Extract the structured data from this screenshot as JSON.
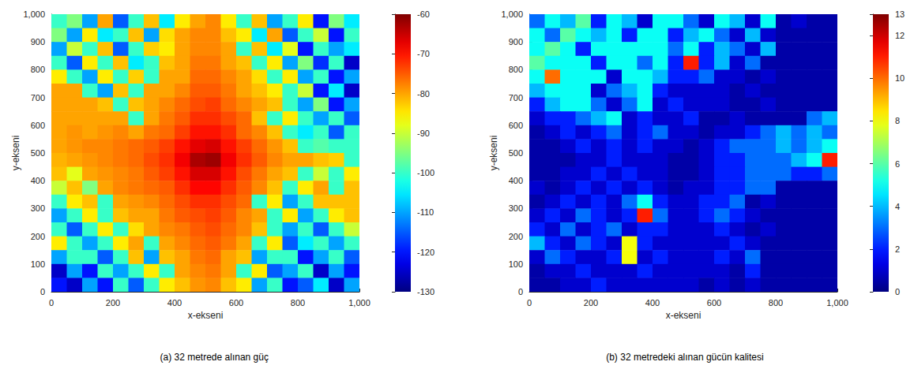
{
  "chart_data": [
    {
      "type": "heatmap",
      "title": "(a) 32 metrede alınan güç",
      "x_label": "x-ekseni",
      "y_label": "y-ekseni",
      "xlim": [
        0,
        1000
      ],
      "xticks": [
        0,
        200,
        400,
        600,
        800,
        1000
      ],
      "ylim": [
        0,
        1000
      ],
      "yticks": [
        0,
        100,
        200,
        300,
        400,
        500,
        600,
        700,
        800,
        900,
        1000
      ],
      "x": [
        25,
        75,
        125,
        175,
        225,
        275,
        325,
        375,
        425,
        475,
        525,
        575,
        625,
        675,
        725,
        775,
        825,
        875,
        925,
        975
      ],
      "y": [
        975,
        925,
        875,
        825,
        775,
        725,
        675,
        625,
        575,
        525,
        475,
        425,
        375,
        325,
        275,
        225,
        175,
        125,
        75,
        25
      ],
      "values": [
        [
          -100,
          -95,
          -110,
          -80,
          -115,
          -100,
          -82,
          -105,
          -85,
          -80,
          -78,
          -85,
          -100,
          -82,
          -110,
          -100,
          -85,
          -120,
          -95,
          -105
        ],
        [
          -95,
          -110,
          -85,
          -105,
          -100,
          -82,
          -110,
          -84,
          -80,
          -78,
          -78,
          -82,
          -85,
          -105,
          -80,
          -115,
          -100,
          -90,
          -120,
          -100
        ],
        [
          -110,
          -90,
          -100,
          -82,
          -115,
          -100,
          -83,
          -85,
          -80,
          -78,
          -78,
          -80,
          -100,
          -82,
          -105,
          -88,
          -120,
          -100,
          -110,
          -105
        ],
        [
          -100,
          -115,
          -85,
          -100,
          -82,
          -105,
          -100,
          -82,
          -80,
          -77,
          -77,
          -80,
          -82,
          -100,
          -85,
          -110,
          -95,
          -118,
          -100,
          -125
        ],
        [
          -85,
          -100,
          -110,
          -85,
          -100,
          -83,
          -100,
          -80,
          -80,
          -76,
          -76,
          -78,
          -80,
          -84,
          -100,
          -85,
          -110,
          -100,
          -120,
          -110
        ],
        [
          -80,
          -80,
          -100,
          -110,
          -82,
          -100,
          -80,
          -80,
          -78,
          -75,
          -75,
          -77,
          -80,
          -82,
          -85,
          -100,
          -90,
          -120,
          -105,
          -125
        ],
        [
          -80,
          -80,
          -80,
          -82,
          -100,
          -82,
          -80,
          -78,
          -76,
          -74,
          -73,
          -76,
          -78,
          -80,
          -82,
          -100,
          -110,
          -95,
          -120,
          -110
        ],
        [
          -80,
          -80,
          -80,
          -80,
          -80,
          -100,
          -80,
          -77,
          -75,
          -72,
          -72,
          -74,
          -76,
          -82,
          -100,
          -85,
          -100,
          -110,
          -100,
          -115
        ],
        [
          -80,
          -79,
          -80,
          -79,
          -78,
          -80,
          -77,
          -76,
          -73,
          -70,
          -70,
          -72,
          -76,
          -78,
          -82,
          -100,
          -105,
          -100,
          -115,
          -100
        ],
        [
          -80,
          -79,
          -78,
          -78,
          -77,
          -76,
          -75,
          -73,
          -70,
          -67,
          -66,
          -70,
          -73,
          -76,
          -79,
          -82,
          -100,
          -98,
          -100,
          -100
        ],
        [
          -81,
          -80,
          -79,
          -78,
          -77,
          -76,
          -74,
          -72,
          -68,
          -63,
          -62,
          -68,
          -72,
          -75,
          -78,
          -80,
          -80,
          -82,
          -83,
          -100
        ],
        [
          -82,
          -88,
          -80,
          -79,
          -78,
          -77,
          -75,
          -73,
          -70,
          -66,
          -66,
          -70,
          -74,
          -77,
          -80,
          -82,
          -100,
          -90,
          -100,
          -85
        ],
        [
          -90,
          -82,
          -95,
          -80,
          -78,
          -77,
          -76,
          -75,
          -72,
          -69,
          -69,
          -72,
          -75,
          -78,
          -82,
          -100,
          -85,
          -80,
          -100,
          -82
        ],
        [
          -100,
          -85,
          -82,
          -100,
          -80,
          -79,
          -78,
          -76,
          -74,
          -72,
          -72,
          -74,
          -76,
          -100,
          -85,
          -110,
          -100,
          -82,
          -82,
          -82
        ],
        [
          -110,
          -100,
          -85,
          -100,
          -82,
          -80,
          -80,
          -77,
          -75,
          -74,
          -73,
          -75,
          -78,
          -80,
          -100,
          -85,
          -110,
          -100,
          -85,
          -82
        ],
        [
          -100,
          -115,
          -100,
          -85,
          -100,
          -84,
          -80,
          -78,
          -77,
          -75,
          -74,
          -76,
          -78,
          -82,
          -100,
          -110,
          -100,
          -115,
          -100,
          -90
        ],
        [
          -85,
          -100,
          -110,
          -100,
          -85,
          -80,
          -100,
          -80,
          -78,
          -76,
          -75,
          -77,
          -80,
          -100,
          -85,
          -115,
          -105,
          -100,
          -110,
          -100
        ],
        [
          -110,
          -100,
          -100,
          -115,
          -100,
          -82,
          -110,
          -82,
          -80,
          -77,
          -76,
          -80,
          -82,
          -110,
          -100,
          -100,
          -120,
          -110,
          -100,
          -115
        ],
        [
          -125,
          -110,
          -120,
          -100,
          -110,
          -100,
          -85,
          -100,
          -80,
          -78,
          -77,
          -80,
          -100,
          -85,
          -115,
          -110,
          -100,
          -125,
          -110,
          -120
        ],
        [
          -120,
          -125,
          -110,
          -120,
          -100,
          -115,
          -100,
          -85,
          -82,
          -79,
          -78,
          -82,
          -85,
          -110,
          -100,
          -120,
          -115,
          -105,
          -125,
          -110
        ]
      ],
      "colorbar_range": [
        -130,
        -60
      ],
      "colorbar_ticks": [
        -130,
        -120,
        -110,
        -100,
        -90,
        -80,
        -70,
        -60
      ]
    },
    {
      "type": "heatmap",
      "title": "(b) 32 metredeki alınan gücün kalitesi",
      "x_label": "x-ekseni",
      "y_label": "y-ekseni",
      "xlim": [
        0,
        1000
      ],
      "xticks": [
        0,
        200,
        400,
        600,
        800,
        1000
      ],
      "ylim": [
        0,
        1000
      ],
      "yticks": [
        0,
        100,
        200,
        300,
        400,
        500,
        600,
        700,
        800,
        900,
        1000
      ],
      "x": [
        25,
        75,
        125,
        175,
        225,
        275,
        325,
        375,
        425,
        475,
        525,
        575,
        625,
        675,
        725,
        775,
        825,
        875,
        925,
        975
      ],
      "y": [
        975,
        925,
        875,
        825,
        775,
        725,
        675,
        625,
        575,
        525,
        475,
        425,
        375,
        325,
        275,
        225,
        175,
        125,
        75,
        25
      ],
      "values": [
        [
          3,
          5,
          4,
          6,
          2,
          5,
          4,
          1,
          5,
          5,
          3,
          1,
          5,
          4,
          1,
          5,
          0.5,
          1,
          0.5,
          0.5
        ],
        [
          5,
          3,
          6,
          5,
          4,
          5,
          2,
          5,
          5,
          2,
          4,
          5,
          3,
          1,
          4,
          1,
          0.5,
          0.5,
          0.5,
          0.5
        ],
        [
          5,
          6,
          5,
          2,
          5,
          5,
          5,
          5,
          5,
          3,
          5,
          2,
          4,
          3,
          1,
          4,
          0.5,
          0.5,
          0.5,
          0.5
        ],
        [
          6,
          5,
          5,
          5,
          2,
          5,
          5,
          3,
          5,
          2,
          11,
          2,
          4,
          1,
          3,
          0.5,
          0.5,
          0.5,
          0.5,
          0.5
        ],
        [
          5,
          10,
          5,
          5,
          5,
          1,
          5,
          5,
          4,
          2,
          2,
          3,
          1,
          1,
          0.5,
          1,
          0.5,
          0.5,
          0.5,
          0.5
        ],
        [
          4,
          5,
          5,
          5,
          1,
          3,
          4,
          5,
          2,
          1,
          1,
          1,
          1,
          0.5,
          1,
          0.5,
          0.5,
          0.5,
          0.5,
          0.5
        ],
        [
          2,
          4,
          5,
          5,
          3,
          1,
          3,
          5,
          1,
          2,
          1,
          1,
          1,
          0.5,
          0.5,
          1,
          0.5,
          0.5,
          0.5,
          0.5
        ],
        [
          1,
          2,
          2,
          3,
          4,
          5,
          1,
          2,
          1,
          1,
          2,
          0.5,
          0.5,
          1,
          0.5,
          0.5,
          0.5,
          0.5,
          3,
          4
        ],
        [
          0.5,
          1,
          2,
          1,
          2,
          3,
          1,
          2,
          3,
          1,
          1,
          0.5,
          1,
          1,
          2,
          3,
          4,
          3,
          4,
          3
        ],
        [
          0.5,
          0.5,
          1,
          2,
          1,
          2,
          1,
          2,
          1,
          1,
          0.5,
          1,
          2,
          3,
          3,
          3,
          4,
          3,
          4,
          5
        ],
        [
          0.5,
          0.5,
          0.5,
          1,
          1,
          2,
          1,
          1,
          1,
          0.5,
          0.5,
          1,
          2,
          2,
          3,
          3,
          3,
          4,
          5,
          11
        ],
        [
          0.5,
          0.5,
          1,
          1,
          2,
          1,
          2,
          1,
          1,
          0.5,
          0.5,
          1,
          2,
          2,
          3,
          3,
          3,
          2,
          2,
          3
        ],
        [
          1,
          0.5,
          1,
          2,
          1,
          2,
          1,
          2,
          1,
          0.5,
          1,
          1,
          2,
          2,
          3,
          3,
          0.5,
          0.5,
          0.5,
          0.5
        ],
        [
          0.5,
          1,
          2,
          1,
          2,
          1,
          3,
          5,
          2,
          1,
          1,
          2,
          2,
          3,
          0.5,
          1,
          0.5,
          0.5,
          0.5,
          0.5
        ],
        [
          1,
          2,
          1,
          3,
          2,
          1,
          2,
          11,
          3,
          1,
          1,
          2,
          3,
          2,
          1,
          0.5,
          0.5,
          0.5,
          0.5,
          0.5
        ],
        [
          2,
          1,
          3,
          1,
          2,
          3,
          1,
          2,
          2,
          1,
          1,
          1,
          2,
          1,
          0.5,
          1,
          0.5,
          0.5,
          0.5,
          0.5
        ],
        [
          4,
          2,
          1,
          3,
          2,
          1,
          8,
          2,
          1,
          1,
          1,
          1,
          1,
          2,
          1,
          0.5,
          0.5,
          0.5,
          0.5,
          0.5
        ],
        [
          1,
          3,
          2,
          1,
          1,
          2,
          8,
          1,
          2,
          1,
          1,
          1,
          2,
          1,
          3,
          0.5,
          0.5,
          0.5,
          0.5,
          0.5
        ],
        [
          0.5,
          1,
          1,
          2,
          1,
          1,
          1,
          2,
          1,
          1,
          1,
          1,
          1,
          0.5,
          2,
          0.5,
          0.5,
          0.5,
          0.5,
          0.5
        ],
        [
          0.5,
          0.5,
          1,
          1,
          2,
          1,
          1,
          1,
          1,
          1,
          1,
          0.5,
          1,
          0.5,
          1,
          0.5,
          0.5,
          0.5,
          0.5,
          0.5
        ]
      ],
      "colorbar_range": [
        0,
        13
      ],
      "colorbar_ticks": [
        0,
        2,
        4,
        6,
        8,
        10,
        12
      ]
    }
  ]
}
